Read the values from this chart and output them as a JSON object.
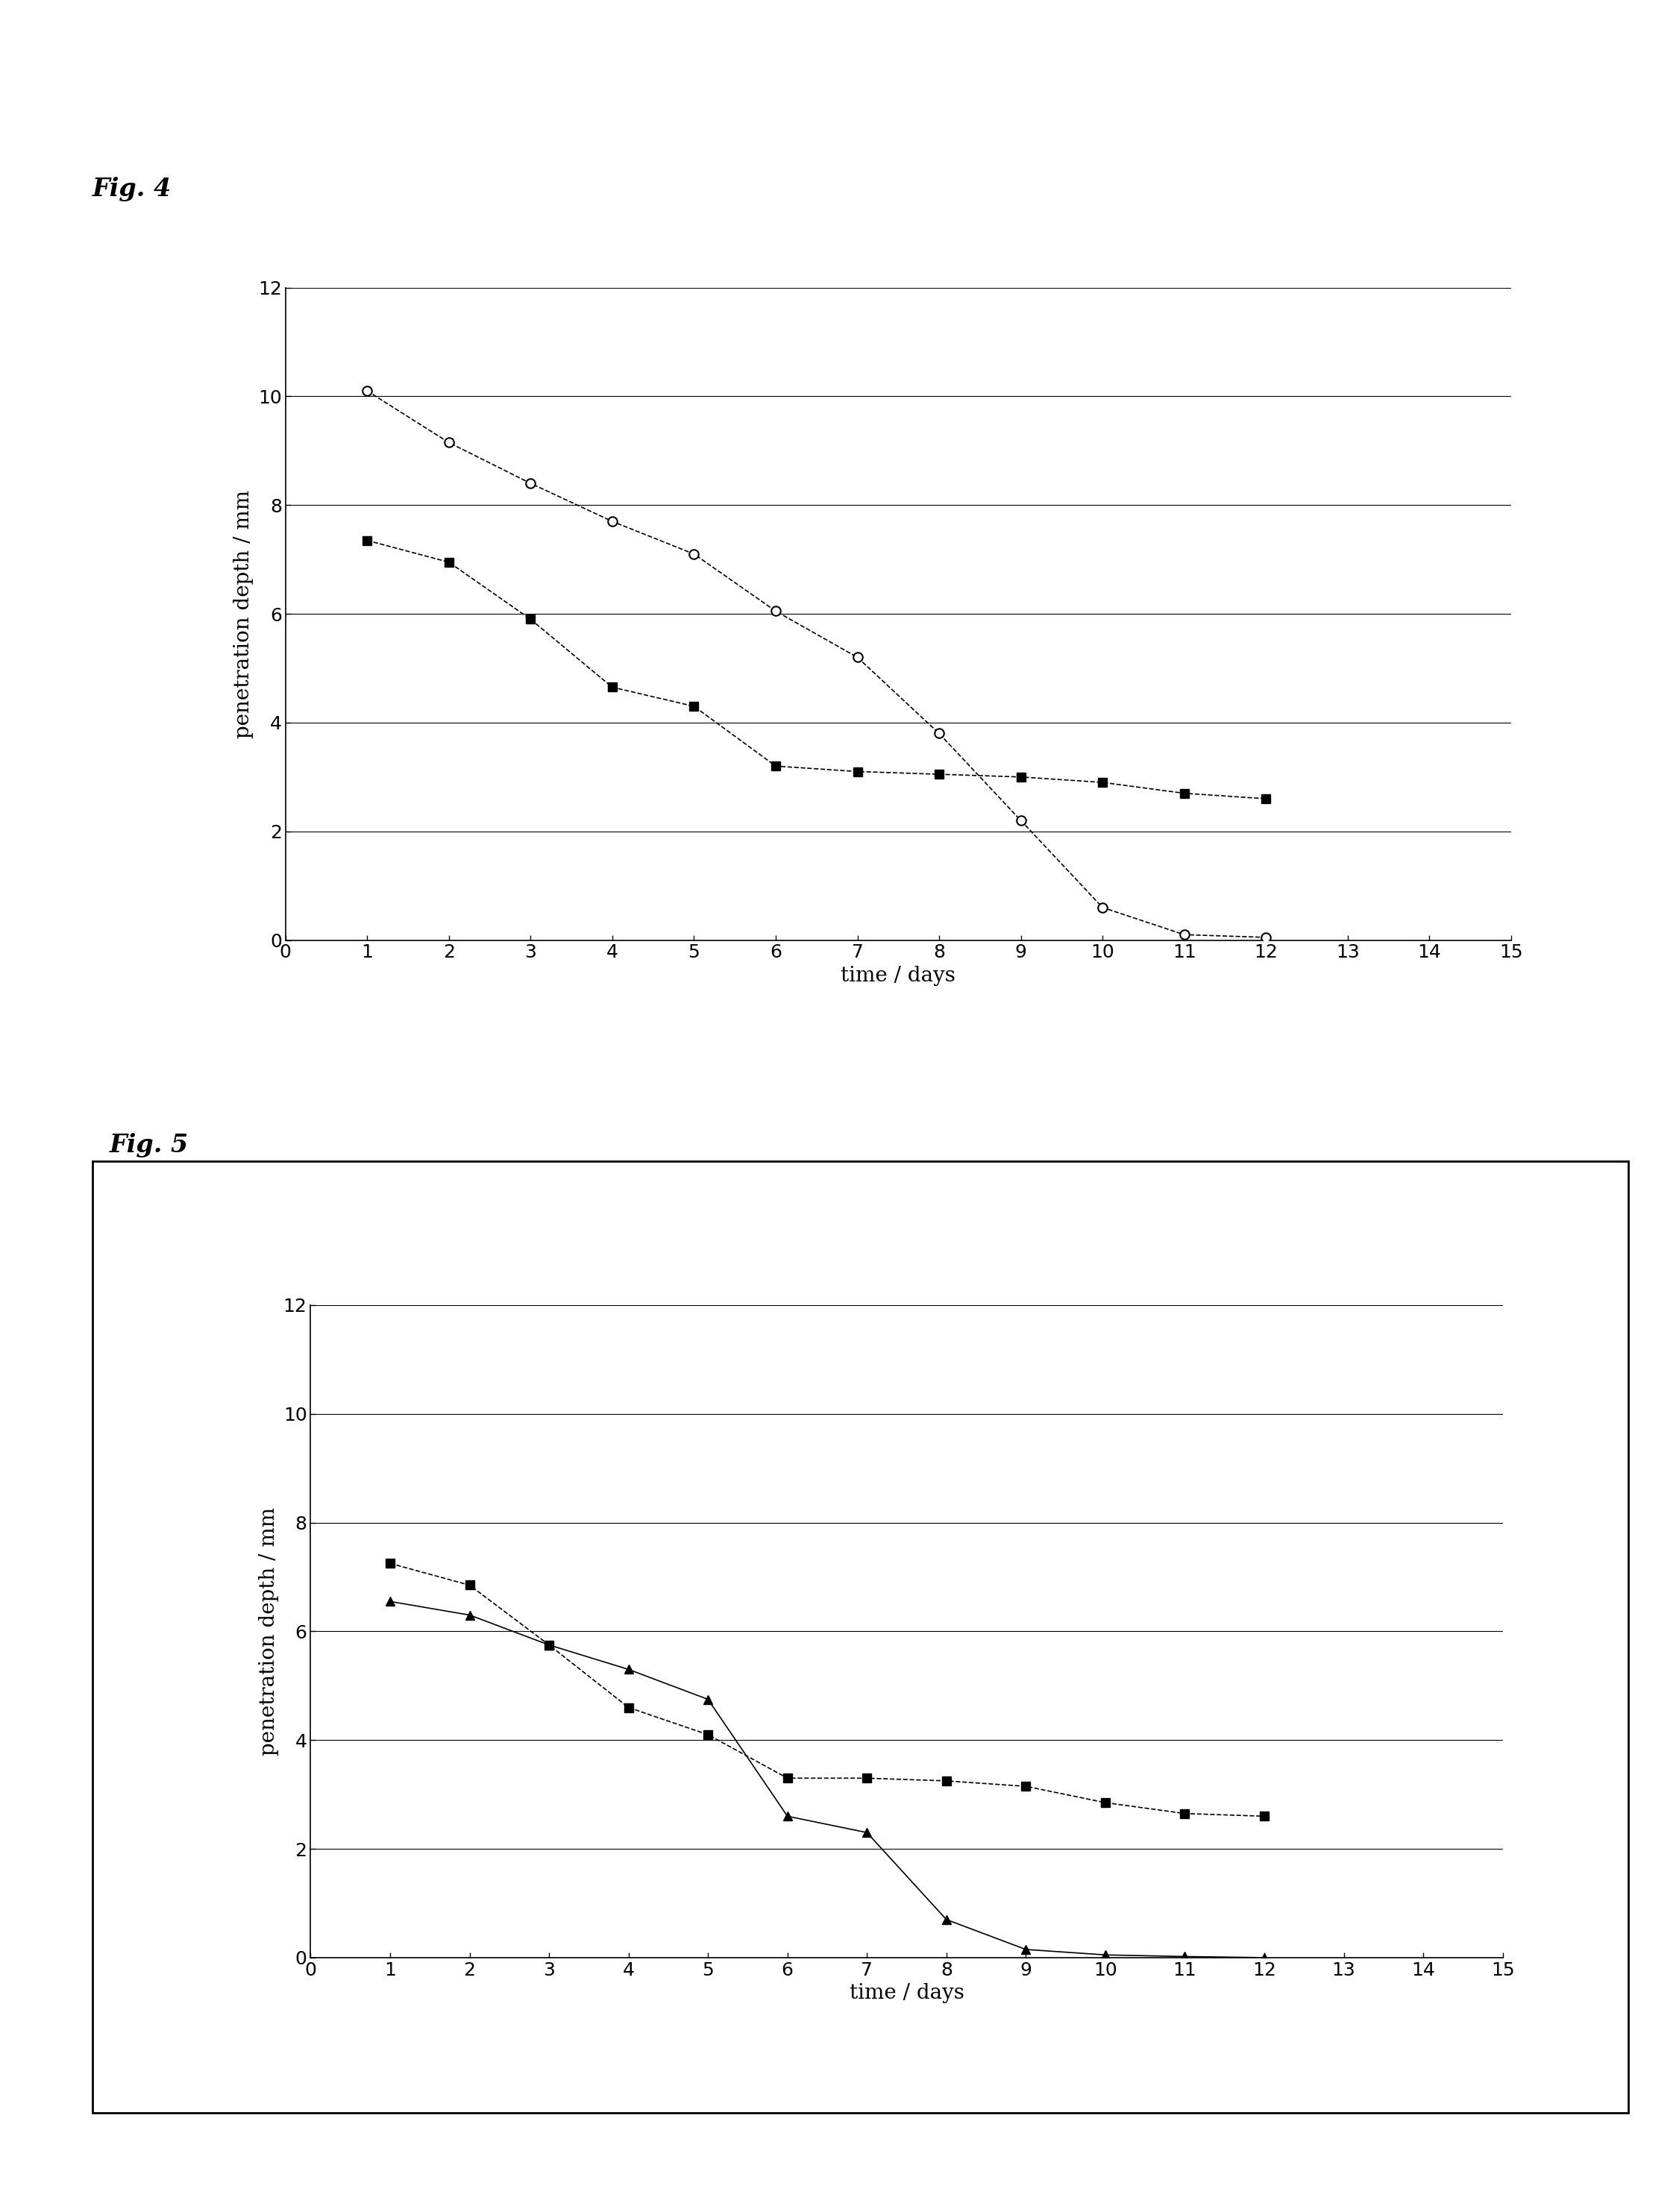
{
  "fig4_label": "Fig. 4",
  "fig5_label": "Fig. 5",
  "xlabel": "time / days",
  "ylabel": "penetration depth / mm",
  "xlim": [
    0,
    15
  ],
  "ylim": [
    0,
    12
  ],
  "yticks": [
    0,
    2,
    4,
    6,
    8,
    10,
    12
  ],
  "xticks": [
    0,
    1,
    2,
    3,
    4,
    5,
    6,
    7,
    8,
    9,
    10,
    11,
    12,
    13,
    14,
    15
  ],
  "fig4_series1_x": [
    1,
    2,
    3,
    4,
    5,
    6,
    7,
    8,
    9,
    10,
    11,
    12
  ],
  "fig4_series1_y": [
    10.1,
    9.15,
    8.4,
    7.7,
    7.1,
    6.05,
    5.2,
    3.8,
    2.2,
    0.6,
    0.1,
    0.05
  ],
  "fig4_series2_x": [
    1,
    2,
    3,
    4,
    5,
    6,
    7,
    8,
    9,
    10,
    11,
    12
  ],
  "fig4_series2_y": [
    7.35,
    6.95,
    5.9,
    4.65,
    4.3,
    3.2,
    3.1,
    3.05,
    3.0,
    2.9,
    2.7,
    2.6
  ],
  "fig5_series1_x": [
    1,
    2,
    3,
    4,
    5,
    6,
    7,
    8,
    9,
    10,
    11,
    12
  ],
  "fig5_series1_y": [
    7.25,
    6.85,
    5.75,
    4.6,
    4.1,
    3.3,
    3.3,
    3.25,
    3.15,
    2.85,
    2.65,
    2.6
  ],
  "fig5_series2_x": [
    1,
    2,
    3,
    4,
    5,
    6,
    7,
    8,
    9,
    10,
    11,
    12
  ],
  "fig5_series2_y": [
    6.55,
    6.3,
    5.75,
    5.3,
    4.75,
    2.6,
    2.3,
    0.7,
    0.15,
    0.05,
    0.02,
    0.0
  ],
  "background_color": "#ffffff",
  "line_color": "#000000"
}
